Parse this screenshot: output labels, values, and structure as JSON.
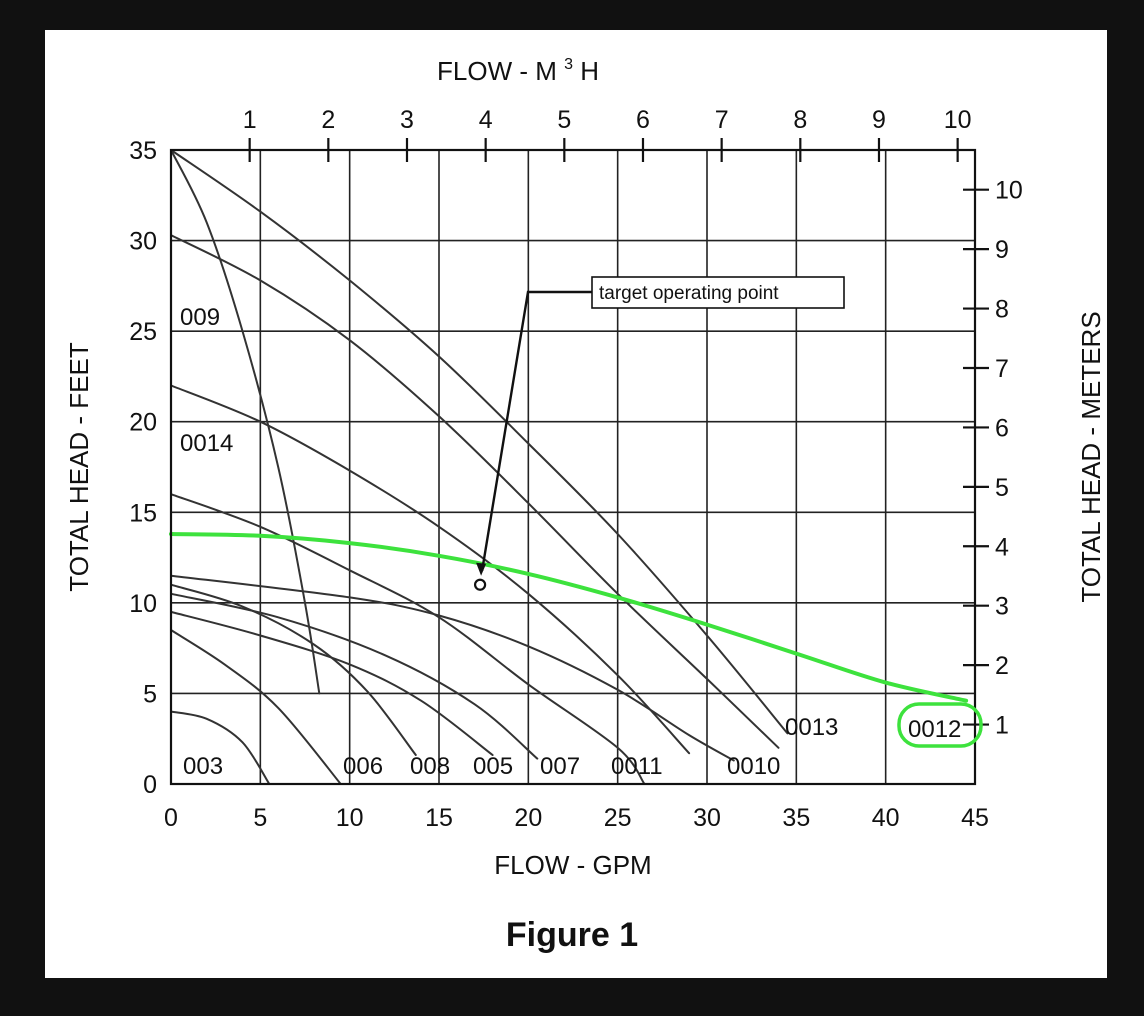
{
  "chart_data": {
    "type": "line",
    "caption": "Figure 1",
    "x": {
      "label": "FLOW - GPM",
      "range": [
        0,
        45
      ],
      "ticks": [
        0,
        5,
        10,
        15,
        20,
        25,
        30,
        35,
        40,
        45
      ]
    },
    "x_top": {
      "label": "FLOW - M",
      "label_sup": "3",
      "label_after": "H",
      "ticks": [
        1,
        2,
        3,
        4,
        5,
        6,
        7,
        8,
        9,
        10
      ]
    },
    "y": {
      "label": "TOTAL HEAD - FEET",
      "range": [
        0,
        35
      ],
      "ticks": [
        0,
        5,
        10,
        15,
        20,
        25,
        30,
        35
      ]
    },
    "y_right": {
      "label": "TOTAL HEAD - METERS",
      "ticks": [
        1,
        2,
        3,
        4,
        5,
        6,
        7,
        8,
        9,
        10
      ]
    },
    "grid": true,
    "series": [
      {
        "name": "003",
        "points": [
          [
            0,
            4
          ],
          [
            2,
            3.6
          ],
          [
            4,
            2.3
          ],
          [
            5.5,
            0
          ]
        ]
      },
      {
        "name": "006",
        "points": [
          [
            0,
            8.5
          ],
          [
            3,
            6.6
          ],
          [
            6,
            4.2
          ],
          [
            9.5,
            0
          ]
        ]
      },
      {
        "name": "008",
        "points": [
          [
            0,
            11
          ],
          [
            4,
            9.8
          ],
          [
            8,
            7.7
          ],
          [
            11,
            5.1
          ],
          [
            13.7,
            1.6
          ]
        ]
      },
      {
        "name": "005",
        "points": [
          [
            0,
            9.5
          ],
          [
            5,
            8.2
          ],
          [
            10,
            6.6
          ],
          [
            14,
            4.6
          ],
          [
            18,
            1.6
          ]
        ]
      },
      {
        "name": "007",
        "points": [
          [
            0,
            10.5
          ],
          [
            6,
            9.2
          ],
          [
            12,
            7.1
          ],
          [
            17,
            4.4
          ],
          [
            20.5,
            1.4
          ]
        ]
      },
      {
        "name": "0011",
        "points": [
          [
            0,
            16
          ],
          [
            5,
            14.2
          ],
          [
            10,
            11.8
          ],
          [
            15,
            9.2
          ],
          [
            20,
            5.5
          ],
          [
            25,
            2
          ],
          [
            26.5,
            0
          ]
        ]
      },
      {
        "name": "0010",
        "points": [
          [
            0,
            11.5
          ],
          [
            10,
            10.3
          ],
          [
            15,
            9.3
          ],
          [
            20,
            7.6
          ],
          [
            25,
            5.2
          ],
          [
            29,
            2.7
          ],
          [
            31.5,
            1.3
          ]
        ]
      },
      {
        "name": "0013",
        "points": [
          [
            0,
            30.3
          ],
          [
            5,
            27.8
          ],
          [
            10,
            24.5
          ],
          [
            15,
            20.3
          ],
          [
            20,
            15.5
          ],
          [
            25,
            10.5
          ],
          [
            30,
            5.8
          ],
          [
            34,
            2
          ]
        ]
      },
      {
        "name": "009",
        "points": [
          [
            0,
            35
          ],
          [
            2,
            31
          ],
          [
            4,
            25
          ],
          [
            6,
            17.5
          ],
          [
            7.5,
            10
          ],
          [
            8.3,
            5
          ]
        ]
      },
      {
        "name": "0014",
        "points": [
          [
            0,
            22
          ],
          [
            5,
            20
          ],
          [
            10,
            17.3
          ],
          [
            15,
            14.2
          ],
          [
            20,
            10.5
          ],
          [
            25,
            6
          ],
          [
            29,
            1.7
          ]
        ]
      },
      {
        "name": "",
        "points": [
          [
            0,
            35
          ],
          [
            5,
            31.6
          ],
          [
            10,
            27.8
          ],
          [
            15,
            23.6
          ],
          [
            20,
            18.8
          ],
          [
            25,
            13.8
          ],
          [
            30,
            8.2
          ],
          [
            34.5,
            2.8
          ]
        ]
      },
      {
        "name": "0012",
        "color": "#3de23d",
        "points": [
          [
            0,
            13.8
          ],
          [
            5,
            13.7
          ],
          [
            10,
            13.3
          ],
          [
            15,
            12.6
          ],
          [
            20,
            11.6
          ],
          [
            25,
            10.3
          ],
          [
            30,
            8.8
          ],
          [
            35,
            7.2
          ],
          [
            40,
            5.6
          ],
          [
            44.5,
            4.6
          ]
        ]
      }
    ],
    "annotations": [
      {
        "text": "target operating point",
        "point": [
          17.3,
          11.0
        ]
      },
      {
        "text": "0012",
        "highlighted": true,
        "color": "#3de23d"
      }
    ],
    "colors": {
      "line": "#333333",
      "grid": "#222222",
      "highlight": "#3de23d",
      "background": "#ffffff"
    }
  }
}
